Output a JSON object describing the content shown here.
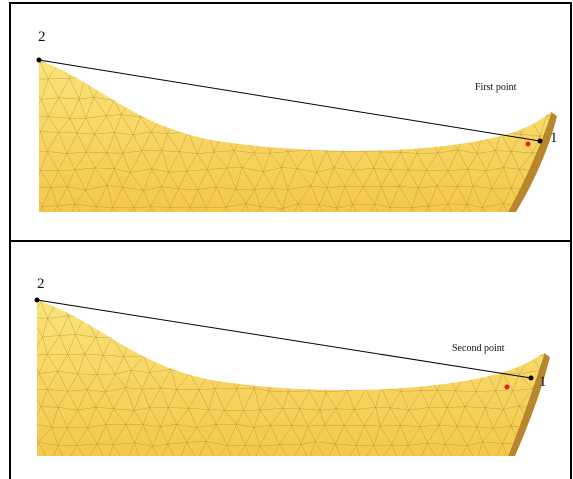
{
  "panels": [
    {
      "id": "top",
      "caption": "First point",
      "vertex_2_label": "2",
      "vertex_1_label": "1"
    },
    {
      "id": "bottom",
      "caption": "Second point",
      "vertex_2_label": "2",
      "vertex_1_label": "1"
    }
  ],
  "colors": {
    "surface_fill": "#f9d95a",
    "surface_shadow": "#e6b63a",
    "edge_face": "#b8862c",
    "mesh_line": "#b08a3c",
    "line": "#000000",
    "vertex": "#000000",
    "marker": "#e02020"
  }
}
